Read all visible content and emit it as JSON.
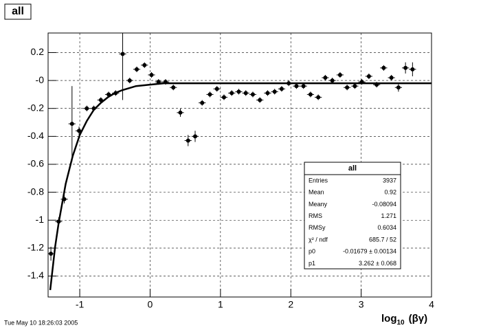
{
  "chart_data": {
    "type": "scatter",
    "title": "all",
    "timestamp": "Tue May 10 18:26:03 2005",
    "x_label": [
      "log",
      "10",
      "(βγ)"
    ],
    "xlim": [
      -1.45,
      4
    ],
    "ylim": [
      -1.55,
      0.34
    ],
    "xticks": [
      -1,
      0,
      1,
      2,
      3,
      4
    ],
    "yticks": [
      -1.4,
      -1.2,
      -1,
      -0.8,
      -0.6,
      -0.4,
      -0.2,
      {
        "value": 0,
        "label": "-0"
      },
      0.2
    ],
    "grid": true,
    "series": [
      {
        "color": "#000000",
        "x": [
          -1.41,
          -1.3,
          -1.22,
          -1.11,
          -1.01,
          -0.9,
          -0.8,
          -0.7,
          -0.59,
          -0.49,
          -0.39,
          -0.29,
          -0.19,
          -0.08,
          0.02,
          0.12,
          0.22,
          0.33,
          0.43,
          0.54,
          0.64,
          0.74,
          0.85,
          0.95,
          1.05,
          1.16,
          1.26,
          1.36,
          1.46,
          1.56,
          1.67,
          1.77,
          1.87,
          1.97,
          2.08,
          2.18,
          2.28,
          2.39,
          2.49,
          2.59,
          2.7,
          2.8,
          2.91,
          3.01,
          3.11,
          3.22,
          3.32,
          3.43,
          3.53,
          3.63,
          3.73
        ],
        "values": [
          -1.24,
          -1.01,
          -0.85,
          -0.31,
          -0.36,
          -0.2,
          -0.2,
          -0.14,
          -0.1,
          -0.09,
          0.19,
          0.0,
          0.08,
          0.11,
          0.04,
          -0.01,
          -0.01,
          -0.05,
          -0.23,
          -0.43,
          -0.4,
          -0.16,
          -0.1,
          -0.06,
          -0.12,
          -0.09,
          -0.08,
          -0.09,
          -0.1,
          -0.14,
          -0.09,
          -0.08,
          -0.06,
          -0.02,
          -0.04,
          -0.04,
          -0.1,
          -0.12,
          0.02,
          0.0,
          0.04,
          -0.05,
          -0.04,
          -0.01,
          0.03,
          -0.03,
          0.09,
          0.02,
          -0.05,
          0.09,
          0.08
        ],
        "yerr": [
          0.05,
          0.03,
          0.03,
          0.27,
          0.03,
          0.02,
          0.02,
          0.02,
          0.02,
          0.02,
          0.33,
          0.02,
          0.02,
          0.02,
          0.02,
          0.02,
          0.02,
          0.02,
          0.03,
          0.04,
          0.04,
          0.02,
          0.02,
          0.02,
          0.02,
          0.02,
          0.02,
          0.02,
          0.02,
          0.02,
          0.02,
          0.02,
          0.02,
          0.02,
          0.02,
          0.02,
          0.02,
          0.02,
          0.02,
          0.02,
          0.02,
          0.02,
          0.02,
          0.02,
          0.02,
          0.02,
          0.02,
          0.02,
          0.03,
          0.04,
          0.05
        ],
        "xerr": 0.05
      }
    ],
    "fit": {
      "color": "#000000",
      "x": [
        -1.42,
        -1.35,
        -1.3,
        -1.2,
        -1.1,
        -1.0,
        -0.9,
        -0.8,
        -0.7,
        -0.6,
        -0.5,
        -0.4,
        -0.2,
        0,
        0.2,
        0.5,
        1,
        2,
        3,
        4
      ],
      "values": [
        -1.5,
        -1.19,
        -1.02,
        -0.74,
        -0.54,
        -0.39,
        -0.29,
        -0.21,
        -0.16,
        -0.12,
        -0.09,
        -0.07,
        -0.04,
        -0.03,
        -0.02,
        -0.02,
        -0.02,
        -0.02,
        -0.02,
        -0.02
      ]
    },
    "stats": {
      "title": "all",
      "rows": [
        [
          "Entries",
          "3937"
        ],
        [
          "Mean",
          "0.92"
        ],
        [
          "Meany",
          "-0.08094"
        ],
        [
          "RMS",
          "1.271"
        ],
        [
          "RMSy",
          "0.6034"
        ],
        [
          "χ² / ndf",
          "685.7 / 52"
        ],
        [
          "p0",
          "-0.01679 ± 0.00134"
        ],
        [
          "p1",
          "3.262 ± 0.068"
        ]
      ]
    }
  }
}
